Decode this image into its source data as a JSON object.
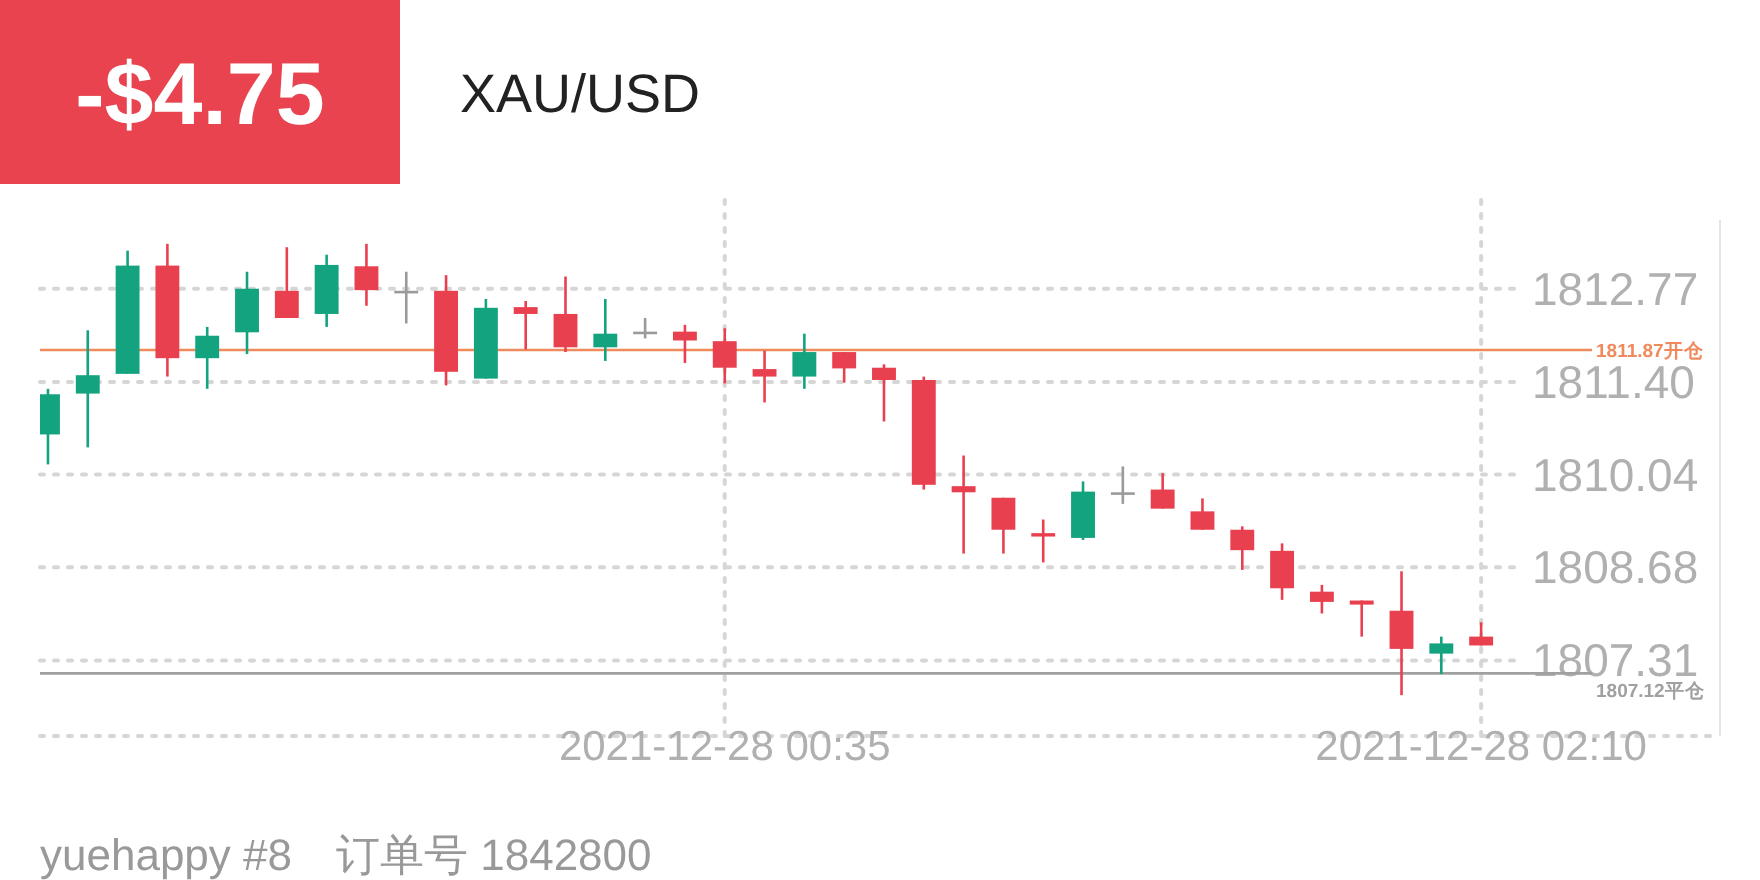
{
  "chart_data": {
    "type": "candlestick",
    "title": "XAU/USD",
    "annotations": [
      "-$4.75",
      "yuehappy #8　订单号 1842800"
    ],
    "x": [
      "2021-12-27T23:10",
      "2021-12-27T23:15",
      "2021-12-27T23:20",
      "2021-12-27T23:25",
      "2021-12-27T23:30",
      "2021-12-27T23:35",
      "2021-12-27T23:40",
      "2021-12-27T23:45",
      "2021-12-27T23:50",
      "2021-12-27T23:55",
      "2021-12-28T00:00",
      "2021-12-28T00:05",
      "2021-12-28T00:10",
      "2021-12-28T00:15",
      "2021-12-28T00:20",
      "2021-12-28T00:25",
      "2021-12-28T00:30",
      "2021-12-28T00:35",
      "2021-12-28T00:40",
      "2021-12-28T00:45",
      "2021-12-28T00:50",
      "2021-12-28T00:55",
      "2021-12-28T01:00",
      "2021-12-28T01:05",
      "2021-12-28T01:10",
      "2021-12-28T01:15",
      "2021-12-28T01:20",
      "2021-12-28T01:25",
      "2021-12-28T01:30",
      "2021-12-28T01:35",
      "2021-12-28T01:40",
      "2021-12-28T01:45",
      "2021-12-28T01:50",
      "2021-12-28T01:55",
      "2021-12-28T02:00",
      "2021-12-28T02:05",
      "2021-12-28T02:10"
    ],
    "ohlc": [
      [
        1810.63,
        1811.3,
        1810.19,
        1811.22
      ],
      [
        1811.23,
        1812.16,
        1810.44,
        1811.5
      ],
      [
        1811.52,
        1813.33,
        1811.52,
        1813.11
      ],
      [
        1813.11,
        1813.43,
        1811.48,
        1811.75
      ],
      [
        1811.75,
        1812.21,
        1811.3,
        1812.08
      ],
      [
        1812.13,
        1813.02,
        1811.81,
        1812.77
      ],
      [
        1812.74,
        1813.38,
        1812.34,
        1812.34
      ],
      [
        1812.4,
        1813.27,
        1812.21,
        1813.12
      ],
      [
        1813.1,
        1813.43,
        1812.52,
        1812.75
      ],
      [
        1812.74,
        1813.02,
        1812.26,
        1812.74
      ],
      [
        1812.74,
        1812.97,
        1811.35,
        1811.55
      ],
      [
        1811.45,
        1812.62,
        1811.45,
        1812.49
      ],
      [
        1812.5,
        1812.59,
        1811.88,
        1812.4
      ],
      [
        1812.4,
        1812.95,
        1811.84,
        1811.91
      ],
      [
        1811.91,
        1812.62,
        1811.71,
        1812.11
      ],
      [
        1812.14,
        1812.34,
        1812.04,
        1812.14
      ],
      [
        1812.14,
        1812.24,
        1811.68,
        1812.01
      ],
      [
        1812.0,
        1812.19,
        1811.38,
        1811.61
      ],
      [
        1811.59,
        1811.86,
        1811.1,
        1811.48
      ],
      [
        1811.48,
        1812.11,
        1811.3,
        1811.84
      ],
      [
        1811.84,
        1811.84,
        1811.39,
        1811.6
      ],
      [
        1811.61,
        1811.66,
        1810.82,
        1811.43
      ],
      [
        1811.43,
        1811.48,
        1809.82,
        1809.89
      ],
      [
        1809.87,
        1810.32,
        1808.88,
        1809.78
      ],
      [
        1809.7,
        1809.7,
        1808.88,
        1809.23
      ],
      [
        1809.18,
        1809.38,
        1808.75,
        1809.13
      ],
      [
        1809.11,
        1809.94,
        1809.08,
        1809.79
      ],
      [
        1809.78,
        1810.16,
        1809.61,
        1809.78
      ],
      [
        1809.82,
        1810.06,
        1809.54,
        1809.54
      ],
      [
        1809.5,
        1809.69,
        1809.23,
        1809.23
      ],
      [
        1809.23,
        1809.28,
        1808.64,
        1808.93
      ],
      [
        1808.92,
        1809.03,
        1808.2,
        1808.37
      ],
      [
        1808.32,
        1808.42,
        1808.0,
        1808.17
      ],
      [
        1808.19,
        1808.19,
        1807.66,
        1808.13
      ],
      [
        1808.04,
        1808.62,
        1806.8,
        1807.48
      ],
      [
        1807.41,
        1807.66,
        1807.11,
        1807.56
      ],
      [
        1807.66,
        1807.87,
        1807.53,
        1807.53
      ]
    ],
    "colors": [
      "#13a37f",
      "#13a37f",
      "#13a37f",
      "#e8404f",
      "#13a37f",
      "#13a37f",
      "#e8404f",
      "#13a37f",
      "#e8404f",
      "#9a9a9a",
      "#e8404f",
      "#13a37f",
      "#e8404f",
      "#e8404f",
      "#13a37f",
      "#9a9a9a",
      "#e8404f",
      "#e8404f",
      "#e8404f",
      "#13a37f",
      "#e8404f",
      "#e8404f",
      "#e8404f",
      "#e8404f",
      "#e8404f",
      "#e8404f",
      "#13a37f",
      "#9a9a9a",
      "#e8404f",
      "#e8404f",
      "#e8404f",
      "#e8404f",
      "#e8404f",
      "#e8404f",
      "#e8404f",
      "#13a37f",
      "#e8404f"
    ],
    "xlim": [
      "2021-12-27T23:09",
      "2021-12-28T02:40"
    ],
    "xticks": [
      {
        "value": "2021-12-28T00:35",
        "label": "2021-12-28 00:35"
      },
      {
        "value": "2021-12-28T02:10",
        "label": "2021-12-28 02:10"
      }
    ],
    "ylim": [
      1806.2,
      1813.78
    ],
    "yticks": [
      1807.31,
      1808.68,
      1810.04,
      {
        "value": 1811.4,
        "label": "1811.40"
      },
      1812.77
    ],
    "ref_lines": [
      {
        "axis": "y",
        "value": 1811.87,
        "label": "1811.87开仓",
        "color": "#f08a5d"
      },
      {
        "axis": "y",
        "value": 1807.12,
        "label": "1807.12平仓",
        "color": "#a0a0a0"
      }
    ],
    "grid": true
  }
}
